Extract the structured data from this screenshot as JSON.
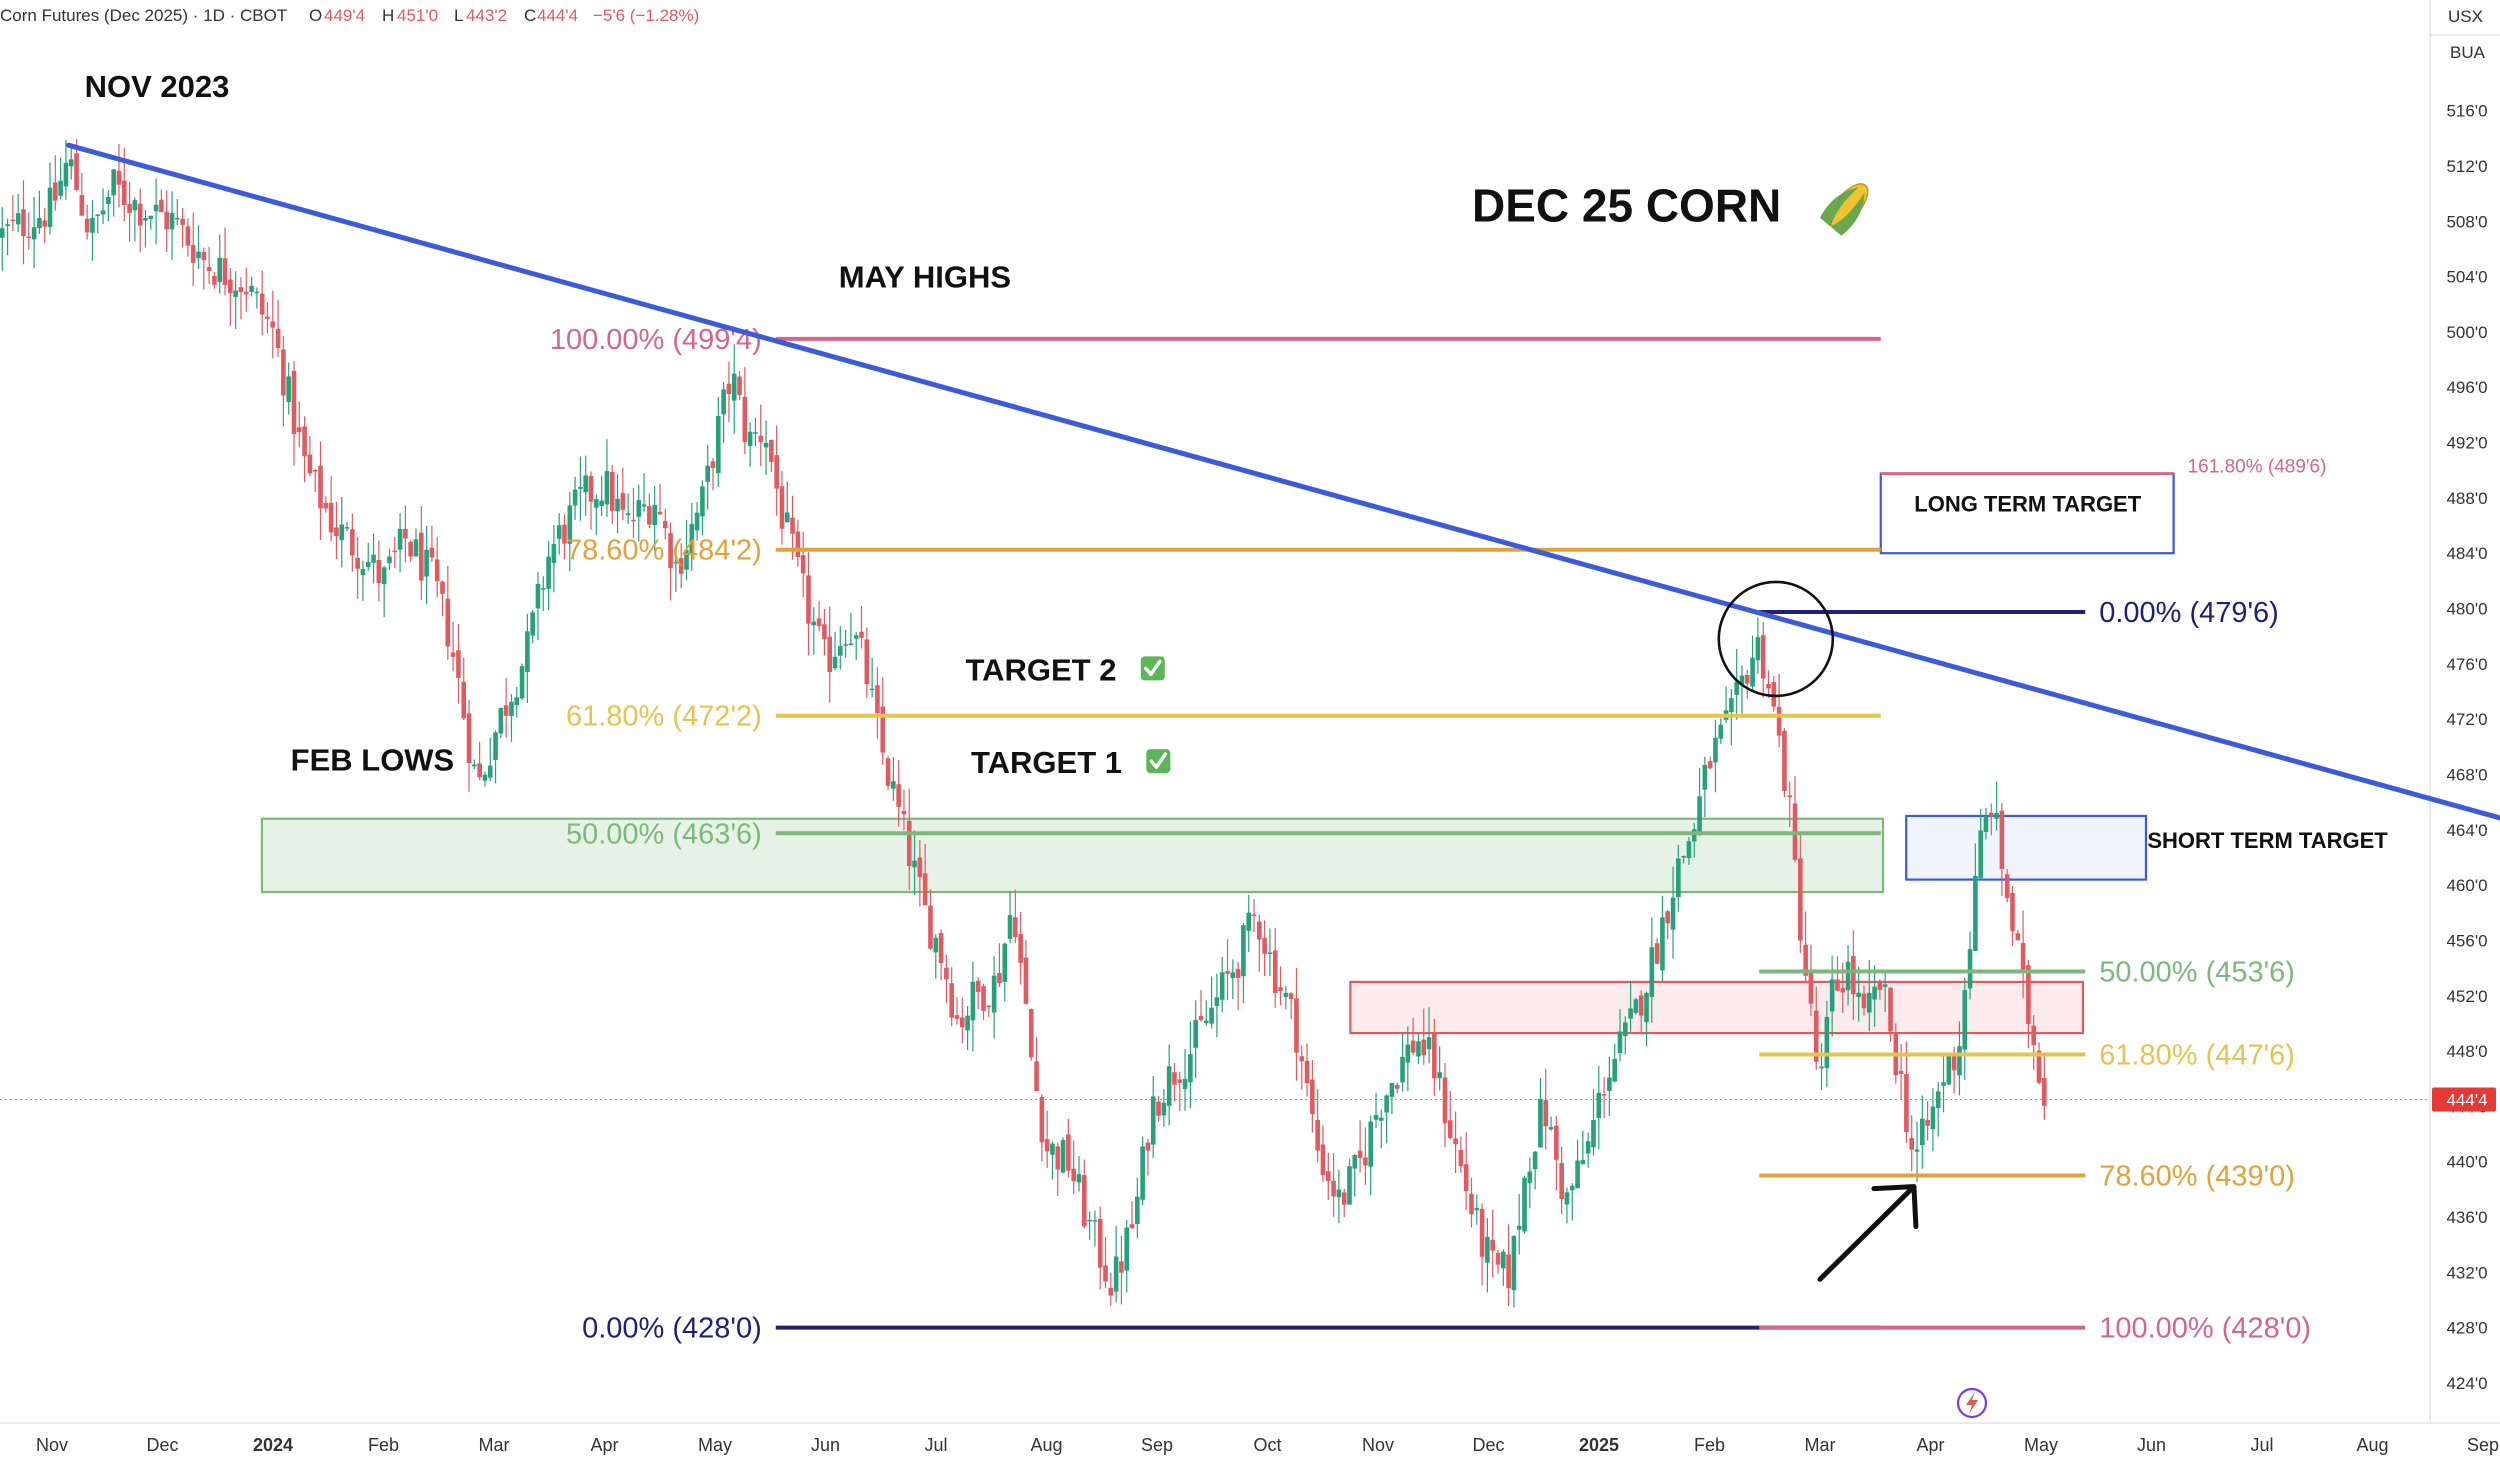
{
  "header": {
    "symbol": "Corn Futures (Dec 2025) · 1D · CBOT",
    "ohlc": [
      {
        "k": "O",
        "v": "449'4"
      },
      {
        "k": "H",
        "v": "451'0"
      },
      {
        "k": "L",
        "v": "443'2"
      },
      {
        "k": "C",
        "v": "444'4"
      }
    ],
    "change": "−5'6 (−1.28%)",
    "currency": "USX",
    "unit": "BUA"
  },
  "colors": {
    "up": "#26a17b",
    "down": "#e05a61",
    "trendline": "#3b5bdb",
    "pink": "#d4668a",
    "orange": "#e2a23b",
    "yellow": "#e6c34f",
    "green": "#7cb87b",
    "navy": "#1f1f78",
    "price_tag": "#e53935"
  },
  "chart_data": {
    "type": "candlestick",
    "title": "DEC 25 CORN",
    "ylim": [
      421,
      520
    ],
    "y_ticks": [
      "516'0",
      "512'0",
      "508'0",
      "504'0",
      "500'0",
      "496'0",
      "492'0",
      "488'0",
      "484'0",
      "480'0",
      "476'0",
      "472'0",
      "468'0",
      "464'0",
      "460'0",
      "456'0",
      "452'0",
      "448'0",
      "444'0",
      "440'0",
      "436'0",
      "432'0",
      "428'0",
      "424'0"
    ],
    "y_tick_values": [
      516,
      512,
      508,
      504,
      500,
      496,
      492,
      488,
      484,
      480,
      476,
      472,
      468,
      464,
      460,
      456,
      452,
      448,
      444,
      440,
      436,
      432,
      428,
      424
    ],
    "x_ticks": [
      {
        "label": "Nov",
        "t": 0
      },
      {
        "label": "Dec",
        "t": 1
      },
      {
        "label": "2024",
        "t": 2,
        "bold": true
      },
      {
        "label": "Feb",
        "t": 3
      },
      {
        "label": "Mar",
        "t": 4
      },
      {
        "label": "Apr",
        "t": 5
      },
      {
        "label": "May",
        "t": 6
      },
      {
        "label": "Jun",
        "t": 7
      },
      {
        "label": "Jul",
        "t": 8
      },
      {
        "label": "Aug",
        "t": 9
      },
      {
        "label": "Sep",
        "t": 10
      },
      {
        "label": "Oct",
        "t": 11
      },
      {
        "label": "Nov",
        "t": 12
      },
      {
        "label": "Dec",
        "t": 13
      },
      {
        "label": "2025",
        "t": 14,
        "bold": true
      },
      {
        "label": "Feb",
        "t": 15
      },
      {
        "label": "Mar",
        "t": 16
      },
      {
        "label": "Apr",
        "t": 17
      },
      {
        "label": "May",
        "t": 18
      },
      {
        "label": "Jun",
        "t": 19
      },
      {
        "label": "Jul",
        "t": 20
      },
      {
        "label": "Aug",
        "t": 21
      },
      {
        "label": "Sep",
        "t": 22
      }
    ],
    "price_path": [
      [
        -0.45,
        507
      ],
      [
        0.0,
        509
      ],
      [
        0.15,
        512.5
      ],
      [
        0.35,
        507
      ],
      [
        0.55,
        510.5
      ],
      [
        0.8,
        509
      ],
      [
        1.1,
        508
      ],
      [
        1.4,
        505
      ],
      [
        1.75,
        503.5
      ],
      [
        2.0,
        500
      ],
      [
        2.3,
        490
      ],
      [
        2.55,
        486
      ],
      [
        2.8,
        484
      ],
      [
        3.0,
        482
      ],
      [
        3.2,
        485
      ],
      [
        3.45,
        482
      ],
      [
        3.6,
        478
      ],
      [
        3.85,
        467
      ],
      [
        4.05,
        472
      ],
      [
        4.3,
        477
      ],
      [
        4.5,
        484
      ],
      [
        4.8,
        488
      ],
      [
        5.0,
        489
      ],
      [
        5.2,
        486
      ],
      [
        5.45,
        488
      ],
      [
        5.65,
        483
      ],
      [
        5.9,
        488
      ],
      [
        6.0,
        492
      ],
      [
        6.15,
        497
      ],
      [
        6.3,
        492
      ],
      [
        6.45,
        493
      ],
      [
        6.6,
        487
      ],
      [
        6.8,
        481
      ],
      [
        7.0,
        476
      ],
      [
        7.2,
        479
      ],
      [
        7.35,
        476
      ],
      [
        7.5,
        470
      ],
      [
        7.7,
        464
      ],
      [
        7.9,
        458
      ],
      [
        8.05,
        455
      ],
      [
        8.2,
        450
      ],
      [
        8.35,
        452
      ],
      [
        8.55,
        453
      ],
      [
        8.7,
        459
      ],
      [
        8.85,
        448
      ],
      [
        9.0,
        441
      ],
      [
        9.2,
        440
      ],
      [
        9.4,
        435
      ],
      [
        9.6,
        431
      ],
      [
        9.8,
        436
      ],
      [
        9.95,
        444
      ],
      [
        10.1,
        446
      ],
      [
        10.3,
        448
      ],
      [
        10.5,
        451
      ],
      [
        10.75,
        455
      ],
      [
        10.9,
        458
      ],
      [
        11.05,
        454
      ],
      [
        11.25,
        450
      ],
      [
        11.45,
        441
      ],
      [
        11.65,
        437
      ],
      [
        11.85,
        440
      ],
      [
        12.0,
        444
      ],
      [
        12.2,
        447
      ],
      [
        12.35,
        449
      ],
      [
        12.5,
        447
      ],
      [
        12.7,
        441
      ],
      [
        12.9,
        435
      ],
      [
        13.05,
        432
      ],
      [
        13.2,
        432
      ],
      [
        13.35,
        440
      ],
      [
        13.5,
        444
      ],
      [
        13.7,
        437
      ],
      [
        13.9,
        441
      ],
      [
        14.05,
        446
      ],
      [
        14.3,
        450
      ],
      [
        14.5,
        455
      ],
      [
        14.7,
        461
      ],
      [
        14.85,
        464
      ],
      [
        15.0,
        469
      ],
      [
        15.2,
        472
      ],
      [
        15.35,
        476
      ],
      [
        15.45,
        477.5
      ],
      [
        15.55,
        474
      ],
      [
        15.7,
        467
      ],
      [
        15.85,
        455
      ],
      [
        16.0,
        445
      ],
      [
        16.1,
        452
      ],
      [
        16.25,
        454
      ],
      [
        16.4,
        450
      ],
      [
        16.55,
        453
      ],
      [
        16.75,
        445
      ],
      [
        16.85,
        440
      ],
      [
        17.0,
        443
      ],
      [
        17.15,
        447
      ],
      [
        17.25,
        448
      ],
      [
        17.45,
        463
      ],
      [
        17.55,
        466
      ],
      [
        17.7,
        459
      ],
      [
        17.85,
        452
      ],
      [
        17.95,
        448
      ],
      [
        18.05,
        444.5
      ]
    ],
    "trendline": {
      "from": {
        "t": 0.15,
        "p": 513.5
      },
      "to": {
        "t": 22.18,
        "p": 464.8
      }
    },
    "levels": [
      {
        "label": "100.00% (499'4)",
        "price": 499.5,
        "t0": 6.55,
        "t1": 16.55,
        "color": "pink",
        "labelSide": "left"
      },
      {
        "label": "78.60% (484'2)",
        "price": 484.25,
        "t0": 6.55,
        "t1": 16.55,
        "color": "orange",
        "labelSide": "left"
      },
      {
        "label": "61.80% (472'2)",
        "price": 472.25,
        "t0": 6.55,
        "t1": 16.55,
        "color": "yellow",
        "labelSide": "left"
      },
      {
        "label": "50.00% (463'6)",
        "price": 463.75,
        "t0": 6.55,
        "t1": 16.55,
        "color": "green",
        "labelSide": "left"
      },
      {
        "label": "0.00% (428'0)",
        "price": 428,
        "t0": 6.55,
        "t1": 16.55,
        "color": "navy",
        "labelSide": "left"
      },
      {
        "label": "0.00% (479'6)",
        "price": 479.75,
        "t0": 15.45,
        "t1": 18.4,
        "color": "navy",
        "labelSide": "right"
      },
      {
        "label": "50.00% (453'6)",
        "price": 453.75,
        "t0": 15.45,
        "t1": 18.4,
        "color": "green",
        "labelSide": "right"
      },
      {
        "label": "61.80% (447'6)",
        "price": 447.75,
        "t0": 15.45,
        "t1": 18.4,
        "color": "yellow",
        "labelSide": "right"
      },
      {
        "label": "78.60% (439'0)",
        "price": 439,
        "t0": 15.45,
        "t1": 18.4,
        "color": "orange",
        "labelSide": "right"
      },
      {
        "label": "100.00% (428'0)",
        "price": 428,
        "t0": 15.45,
        "t1": 18.4,
        "color": "pink",
        "labelSide": "right"
      },
      {
        "label": "161.80% (489'6)",
        "price": 489.75,
        "t0": 16.55,
        "t1": 19.2,
        "color": "pink",
        "labelSide": "right",
        "small": true
      }
    ],
    "zones": [
      {
        "label": "FEB LOWS zone",
        "t0": 1.9,
        "t1": 16.57,
        "p_top": 464.8,
        "p_bot": 459.5,
        "fill": "rgba(124,184,123,0.18)",
        "stroke": "#7cb87b"
      },
      {
        "label": "resistance zone",
        "t0": 11.75,
        "t1": 18.38,
        "p_top": 453.0,
        "p_bot": 449.3,
        "fill": "rgba(224,90,97,0.12)",
        "stroke": "#e05a61"
      },
      {
        "label": "SHORT TERM TARGET box",
        "t0": 16.78,
        "t1": 18.95,
        "p_top": 465.0,
        "p_bot": 460.4,
        "fill": "rgba(70,110,220,0.08)",
        "stroke": "#3b5bdb"
      },
      {
        "label": "LONG TERM TARGET box",
        "t0": 16.55,
        "t1": 19.2,
        "p_top": 489.75,
        "p_bot": 484.0,
        "fill": "#ffffff",
        "stroke": "#3b5bdb"
      }
    ],
    "annotations": [
      {
        "text": "NOV 2023",
        "t": 0.95,
        "p": 517.0
      },
      {
        "text": "MAY HIGHS",
        "t": 7.9,
        "p": 503.2
      },
      {
        "text": "DEC 25 CORN",
        "t": 14.25,
        "p": 508.0,
        "big": true
      },
      {
        "text": "TARGET 2",
        "t": 8.95,
        "p": 474.8,
        "check": true
      },
      {
        "text": "TARGET 1",
        "t": 9.0,
        "p": 468.1,
        "check": true
      },
      {
        "text": "FEB LOWS",
        "t": 2.9,
        "p": 468.3
      },
      {
        "text": "LONG TERM TARGET",
        "t": 17.88,
        "p": 487.0,
        "inBox": true
      },
      {
        "text": "SHORT TERM TARGET",
        "t": 20.05,
        "p": 462.7
      }
    ],
    "current_price": {
      "label": "444'4",
      "value": 444.5
    },
    "circle": {
      "t": 15.6,
      "p": 477.8
    },
    "arrow": {
      "from": {
        "t": 16.0,
        "p": 431.5
      },
      "to": {
        "t": 16.85,
        "p": 438.2
      }
    }
  }
}
